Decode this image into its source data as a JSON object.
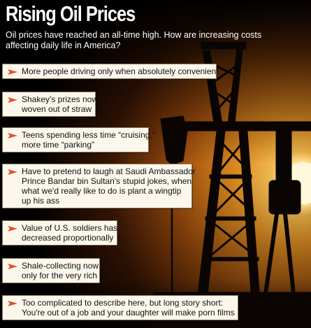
{
  "page": {
    "title": "Rising Oil Prices",
    "subtitle": "Oil prices have reached an all-time high. How are increasing costs affecting daily life in America?"
  },
  "items": [
    {
      "text": "More people driving only when absolutely convenient"
    },
    {
      "text": "Shakey's prizes now\nwoven out of straw"
    },
    {
      "text": "Teens spending less time “cruising,”\nmore time “parking”"
    },
    {
      "text": "Have to pretend to laugh at Saudi Ambassador\nPrince Bandar bin Sultan's stupid jokes, when\nwhat we'd really like to do is plant a wingtip\nup his ass"
    },
    {
      "text": "Value of U.S. soldiers has\ndecreased proportionally"
    },
    {
      "text": "Shale-collecting now\nonly for the very rich"
    },
    {
      "text": "Too complicated to describe here, but long story short:\nYou're out of a job and your daughter will make porn films"
    }
  ],
  "colors": {
    "bullet": "#e0502a",
    "card_bg": "#fbf7ec",
    "sky_glow": "#e89a2a",
    "sun": "#fff2c0"
  }
}
